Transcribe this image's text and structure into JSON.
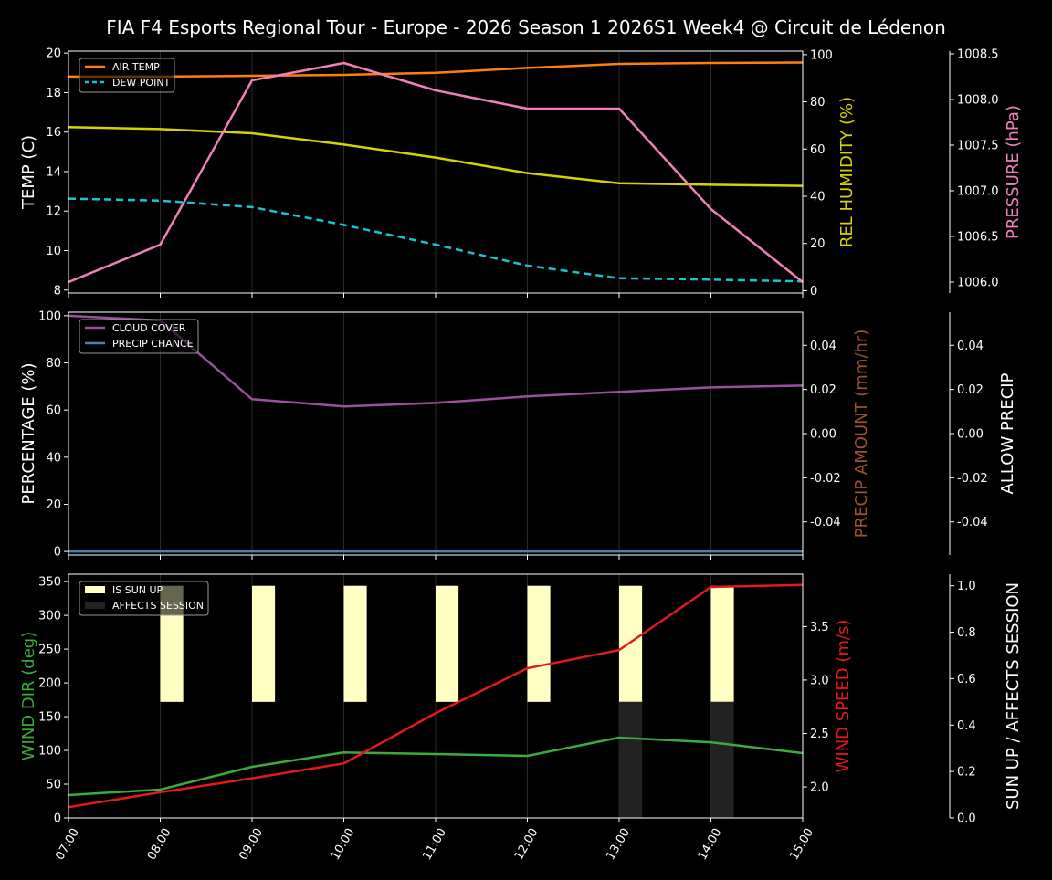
{
  "title": "FIA F4 Esports Regional Tour - Europe - 2026 Season 1 2026S1 Week4 @ Circuit de Lédenon",
  "chart_data": [
    {
      "type": "line",
      "x": [
        "07:00",
        "08:00",
        "09:00",
        "10:00",
        "11:00",
        "12:00",
        "13:00",
        "14:00",
        "15:00"
      ],
      "grid": "vertical",
      "legend": "top-left",
      "axes": [
        {
          "id": "temp",
          "side": "left",
          "label": "TEMP (C)",
          "color": "#ffffff",
          "range": [
            7.85,
            20.1
          ],
          "ticks": [
            8,
            10,
            12,
            14,
            16,
            18,
            20
          ],
          "fmt": 0
        },
        {
          "id": "hum",
          "side": "right",
          "label": "REL HUMIDITY (%)",
          "color": "#d4d400",
          "range": [
            -1,
            101.5
          ],
          "ticks": [
            0,
            20,
            40,
            60,
            80,
            100
          ],
          "fmt": 0
        },
        {
          "id": "pres",
          "side": "far",
          "label": "PRESSURE (hPa)",
          "color": "#f080b8",
          "range": [
            1005.88,
            1008.53
          ],
          "ticks": [
            1006.0,
            1006.5,
            1007.0,
            1007.5,
            1008.0,
            1008.5
          ],
          "fmt": 1
        }
      ],
      "series": [
        {
          "name": "AIR TEMP",
          "axis": "temp",
          "color": "#ff7f0e",
          "dash": false,
          "legend": true,
          "values": [
            18.81,
            18.81,
            18.85,
            18.9,
            19.0,
            19.25,
            19.45,
            19.5,
            19.52
          ]
        },
        {
          "name": "DEW POINT",
          "axis": "temp",
          "color": "#17c5d0",
          "dash": true,
          "legend": true,
          "values": [
            12.63,
            12.53,
            12.2,
            11.3,
            10.3,
            9.24,
            8.6,
            8.53,
            8.44
          ]
        },
        {
          "name": "",
          "axis": "hum",
          "color": "#d4d400",
          "dash": false,
          "legend": false,
          "values": [
            69.3,
            68.5,
            66.7,
            61.9,
            56.4,
            49.8,
            45.5,
            44.9,
            44.4
          ]
        },
        {
          "name": "",
          "axis": "pres",
          "color": "#f080b8",
          "dash": false,
          "legend": false,
          "values": [
            1006.0,
            1006.41,
            1008.21,
            1008.4,
            1008.1,
            1007.9,
            1007.9,
            1006.8,
            1006.0
          ]
        }
      ]
    },
    {
      "type": "line",
      "x": [
        "07:00",
        "08:00",
        "09:00",
        "10:00",
        "11:00",
        "12:00",
        "13:00",
        "14:00",
        "15:00"
      ],
      "grid": "vertical",
      "legend": "top-left",
      "axes": [
        {
          "id": "pct",
          "side": "left",
          "label": "PERCENTAGE (%)",
          "color": "#ffffff",
          "range": [
            -1.5,
            101.5
          ],
          "ticks": [
            0,
            20,
            40,
            60,
            80,
            100
          ],
          "fmt": 0
        },
        {
          "id": "amt",
          "side": "right",
          "label": "PRECIP AMOUNT (mm/hr)",
          "color": "#a0522d",
          "range": [
            -0.055,
            0.055
          ],
          "ticks": [
            -0.04,
            -0.02,
            0.0,
            0.02,
            0.04
          ],
          "fmt": 2
        },
        {
          "id": "allow",
          "side": "far",
          "label": "ALLOW PRECIP",
          "color": "#ffffff",
          "range": [
            -0.055,
            0.055
          ],
          "ticks": [
            -0.04,
            -0.02,
            0.0,
            0.02,
            0.04
          ],
          "fmt": 2
        }
      ],
      "series": [
        {
          "name": "CLOUD COVER",
          "axis": "pct",
          "color": "#9b4f9f",
          "dash": false,
          "legend": true,
          "values": [
            100,
            98,
            64.6,
            61.5,
            63,
            65.8,
            67.7,
            69.6,
            70.4
          ]
        },
        {
          "name": "PRECIP CHANCE",
          "axis": "pct",
          "color": "#4682b4",
          "dash": false,
          "legend": true,
          "values": [
            0,
            0,
            0,
            0,
            0,
            0,
            0,
            0,
            0
          ]
        }
      ]
    },
    {
      "type": "line",
      "x": [
        "07:00",
        "08:00",
        "09:00",
        "10:00",
        "11:00",
        "12:00",
        "13:00",
        "14:00",
        "15:00"
      ],
      "grid": "vertical",
      "legend": "top-left",
      "axes": [
        {
          "id": "dir",
          "side": "left",
          "label": "WIND DIR (deg)",
          "color": "#3cab3c",
          "range": [
            0,
            361
          ],
          "ticks": [
            0,
            50,
            100,
            150,
            200,
            250,
            300,
            350
          ],
          "fmt": 0
        },
        {
          "id": "spd",
          "side": "right",
          "label": "WIND SPEED (m/s)",
          "color": "#e31a1c",
          "range": [
            1.71,
            3.99
          ],
          "ticks": [
            2.0,
            2.5,
            3.0,
            3.5
          ],
          "fmt": 1
        },
        {
          "id": "sun",
          "side": "far",
          "label": "SUN UP / AFFECTS SESSION",
          "color": "#ffffff",
          "range": [
            0,
            1.05
          ],
          "ticks": [
            0.0,
            0.2,
            0.4,
            0.6,
            0.8,
            1.0
          ],
          "fmt": 1
        }
      ],
      "bars": [
        {
          "name": "IS SUN UP",
          "axis": "sun",
          "color": "#ffffc4",
          "base": 0.5,
          "legend": true,
          "values": [
            0,
            1,
            1,
            1,
            1,
            1,
            1,
            1,
            0
          ]
        },
        {
          "name": "AFFECTS SESSION",
          "axis": "sun",
          "color": "#222222",
          "base": 0,
          "legend": true,
          "values": [
            0,
            0,
            0,
            0,
            0,
            0,
            1,
            1,
            0
          ]
        }
      ],
      "series": [
        {
          "name": "",
          "axis": "dir",
          "color": "#3cab3c",
          "dash": false,
          "legend": false,
          "values": [
            33.8,
            42,
            75.7,
            97,
            94.6,
            91.9,
            119,
            112,
            96
          ]
        },
        {
          "name": "",
          "axis": "spd",
          "color": "#e31a1c",
          "dash": false,
          "legend": false,
          "values": [
            1.81,
            1.95,
            2.08,
            2.22,
            2.69,
            3.11,
            3.28,
            3.87,
            3.89
          ]
        }
      ]
    }
  ]
}
